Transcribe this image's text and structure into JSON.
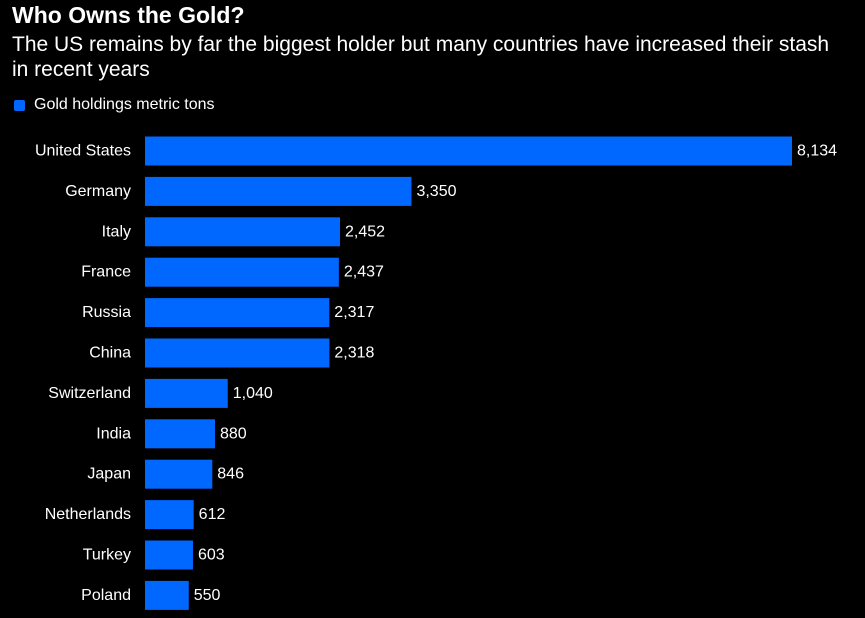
{
  "colors": {
    "background": "#000000",
    "bar": "#0068ff",
    "text": "#ffffff"
  },
  "chart_data": {
    "type": "bar",
    "orientation": "horizontal",
    "title": "Who Owns the Gold?",
    "subtitle": "The US remains by far the biggest holder but many countries have increased their stash in recent years",
    "legend": [
      {
        "label": "Gold holdings metric tons",
        "color": "#0068ff"
      }
    ],
    "categories": [
      "United States",
      "Germany",
      "Italy",
      "France",
      "Russia",
      "China",
      "Switzerland",
      "India",
      "Japan",
      "Netherlands",
      "Turkey",
      "Poland"
    ],
    "values": [
      8134,
      3350,
      2452,
      2437,
      2317,
      2318,
      1040,
      880,
      846,
      612,
      603,
      550
    ],
    "value_labels": [
      "8,134",
      "3,350",
      "2,452",
      "2,437",
      "2,317",
      "2,318",
      "1,040",
      "880",
      "846",
      "612",
      "603",
      "550"
    ],
    "xlim": [
      0,
      8134
    ],
    "xlabel": "",
    "ylabel": "",
    "grid": false
  }
}
